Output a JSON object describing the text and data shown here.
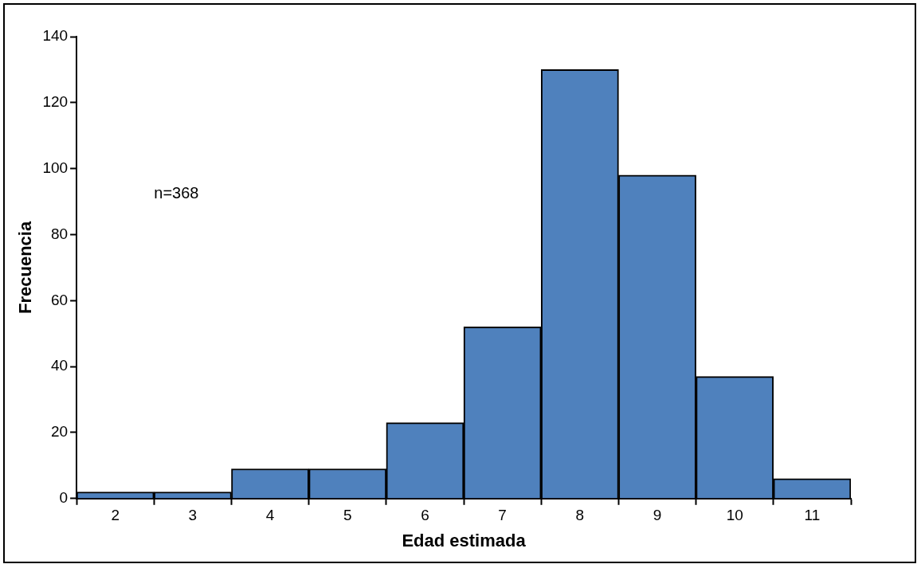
{
  "chart_data": {
    "type": "bar",
    "xlabel": "Edad estimada",
    "ylabel": "Frecuencia",
    "categories": [
      "2",
      "3",
      "4",
      "5",
      "6",
      "7",
      "8",
      "9",
      "10",
      "11"
    ],
    "values": [
      2,
      2,
      9,
      9,
      23,
      52,
      130,
      98,
      37,
      6
    ],
    "color": "#4f81bd",
    "ylim": [
      0,
      140
    ],
    "yticks": [
      0,
      20,
      40,
      60,
      80,
      100,
      120,
      140
    ],
    "grid": false,
    "legend": false,
    "annotations": [
      "n=368"
    ]
  }
}
